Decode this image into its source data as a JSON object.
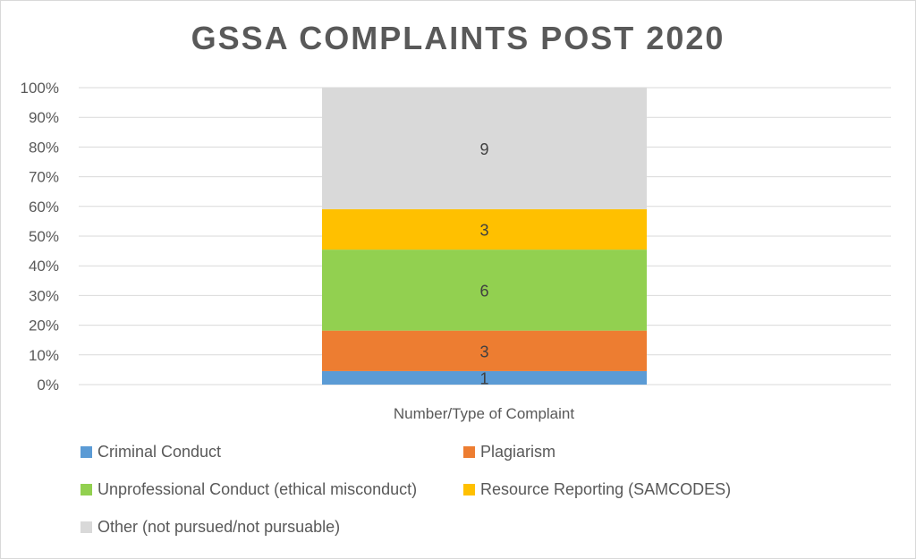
{
  "chart_data": {
    "type": "bar",
    "stacked": "percent",
    "title": "GSSA COMPLAINTS POST 2020",
    "xlabel": "Number/Type of Complaint",
    "ylabel": "",
    "ylim": [
      0,
      100
    ],
    "yticks": [
      "0%",
      "10%",
      "20%",
      "30%",
      "40%",
      "50%",
      "60%",
      "70%",
      "80%",
      "90%",
      "100%"
    ],
    "grid": true,
    "legend_position": "bottom",
    "series": [
      {
        "name": "Criminal Conduct",
        "values": [
          1
        ],
        "color": "#5b9bd5"
      },
      {
        "name": "Plagiarism",
        "values": [
          3
        ],
        "color": "#ed7d31"
      },
      {
        "name": "Unprofessional Conduct (ethical misconduct)",
        "values": [
          6
        ],
        "color": "#92d050"
      },
      {
        "name": "Resource Reporting (SAMCODES)",
        "values": [
          3
        ],
        "color": "#ffc000"
      },
      {
        "name": "Other (not pursued/not pursuable)",
        "values": [
          9
        ],
        "color": "#d9d9d9"
      }
    ]
  }
}
